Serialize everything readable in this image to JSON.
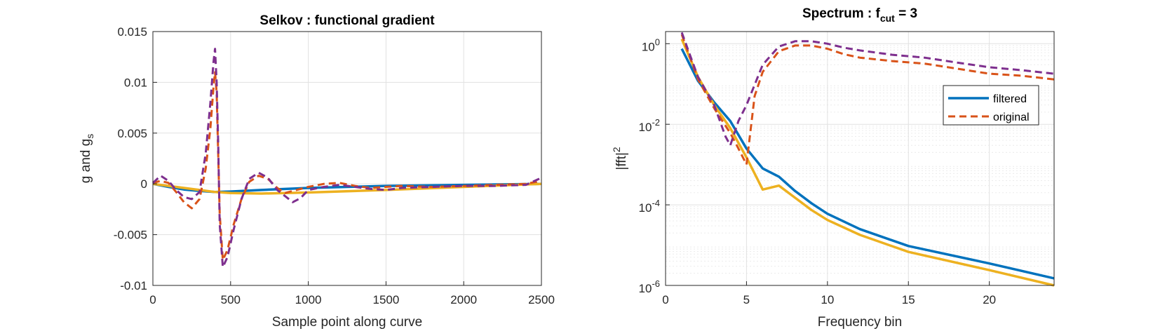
{
  "chart_data": [
    {
      "type": "line",
      "title": "Selkov : functional gradient",
      "xlabel": "Sample point along curve",
      "ylabel": "g and g",
      "ylabel_sub": "s",
      "xlim": [
        0,
        2500
      ],
      "ylim": [
        -0.01,
        0.015
      ],
      "xticks": [
        0,
        500,
        1000,
        1500,
        2000,
        2500
      ],
      "xtick_labels": [
        "0",
        "500",
        "1000",
        "1500",
        "2000",
        "2500"
      ],
      "yticks": [
        -0.01,
        -0.005,
        0,
        0.005,
        0.01,
        0.015
      ],
      "ytick_labels": [
        "-0.01",
        "-0.005",
        "0",
        "0.005",
        "0.01",
        "0.015"
      ],
      "grid": true,
      "series": [
        {
          "color": "#0072BD",
          "dash": "solid",
          "width": 3.5,
          "points": [
            [
              0,
              0
            ],
            [
              100,
              -0.0003
            ],
            [
              200,
              -0.00055
            ],
            [
              300,
              -0.0007
            ],
            [
              400,
              -0.0008
            ],
            [
              500,
              -0.00075
            ],
            [
              700,
              -0.0006
            ],
            [
              1000,
              -0.0004
            ],
            [
              1500,
              -0.0002
            ],
            [
              2000,
              -0.0001
            ],
            [
              2500,
              0
            ]
          ]
        },
        {
          "color": "#EDB120",
          "dash": "solid",
          "width": 3.5,
          "points": [
            [
              0,
              0
            ],
            [
              100,
              -0.0002
            ],
            [
              200,
              -0.0004
            ],
            [
              300,
              -0.0006
            ],
            [
              400,
              -0.0008
            ],
            [
              500,
              -0.0009
            ],
            [
              700,
              -0.00095
            ],
            [
              1000,
              -0.00085
            ],
            [
              1500,
              -0.0006
            ],
            [
              2000,
              -0.0003
            ],
            [
              2500,
              0
            ]
          ]
        },
        {
          "color": "#D95319",
          "dash": "dashed",
          "width": 3,
          "points": [
            [
              0,
              0.0001
            ],
            [
              50,
              0.0003
            ],
            [
              100,
              0.0001
            ],
            [
              150,
              -0.0008
            ],
            [
              200,
              -0.0018
            ],
            [
              250,
              -0.0024
            ],
            [
              300,
              -0.0015
            ],
            [
              340,
              0.0015
            ],
            [
              370,
              0.0055
            ],
            [
              390,
              0.0095
            ],
            [
              400,
              0.011
            ],
            [
              410,
              0.009
            ],
            [
              420,
              0.003
            ],
            [
              430,
              -0.003
            ],
            [
              450,
              -0.0075
            ],
            [
              480,
              -0.0065
            ],
            [
              520,
              -0.004
            ],
            [
              570,
              -0.0015
            ],
            [
              620,
              0.0002
            ],
            [
              680,
              0.0008
            ],
            [
              740,
              0.0005
            ],
            [
              800,
              -0.0004
            ],
            [
              850,
              -0.0009
            ],
            [
              900,
              -0.0007
            ],
            [
              1000,
              -0.0003
            ],
            [
              1100,
              0
            ],
            [
              1200,
              0.0001
            ],
            [
              1300,
              -0.0002
            ],
            [
              1400,
              -0.0004
            ],
            [
              1500,
              -0.0003
            ],
            [
              1600,
              -0.0002
            ],
            [
              1800,
              -0.0003
            ],
            [
              2000,
              -0.0002
            ],
            [
              2200,
              -0.0001
            ],
            [
              2400,
              0
            ],
            [
              2500,
              0.0003
            ]
          ]
        },
        {
          "color": "#7E2F8E",
          "dash": "dashed",
          "width": 3,
          "points": [
            [
              0,
              0.0001
            ],
            [
              50,
              0.0008
            ],
            [
              100,
              0.0003
            ],
            [
              150,
              -0.0006
            ],
            [
              200,
              -0.0013
            ],
            [
              250,
              -0.0015
            ],
            [
              300,
              -0.0008
            ],
            [
              340,
              0.003
            ],
            [
              370,
              0.008
            ],
            [
              390,
              0.012
            ],
            [
              400,
              0.0133
            ],
            [
              410,
              0.01
            ],
            [
              420,
              0.004
            ],
            [
              430,
              -0.004
            ],
            [
              450,
              -0.0082
            ],
            [
              480,
              -0.0072
            ],
            [
              520,
              -0.0045
            ],
            [
              570,
              -0.0015
            ],
            [
              620,
              0.0005
            ],
            [
              680,
              0.0011
            ],
            [
              740,
              0.0006
            ],
            [
              800,
              -0.0006
            ],
            [
              850,
              -0.0012
            ],
            [
              900,
              -0.0018
            ],
            [
              950,
              -0.0014
            ],
            [
              1000,
              -0.0006
            ],
            [
              1100,
              -0.0003
            ],
            [
              1200,
              -0.0001
            ],
            [
              1300,
              -0.0003
            ],
            [
              1400,
              -0.0005
            ],
            [
              1500,
              -0.0006
            ],
            [
              1600,
              -0.0004
            ],
            [
              1800,
              -0.0003
            ],
            [
              2000,
              -0.0002
            ],
            [
              2200,
              -0.0002
            ],
            [
              2400,
              -0.0001
            ],
            [
              2500,
              0.0006
            ]
          ]
        }
      ]
    },
    {
      "type": "line",
      "title": "Spectrum : f",
      "title_sub": "cut",
      "title_suffix": " = 3",
      "xlabel": "Frequency bin",
      "ylabel": "|fft|",
      "ylabel_sup": "2",
      "yscale": "log",
      "xlim": [
        0,
        24
      ],
      "ylim": [
        1e-06,
        2
      ],
      "xticks": [
        0,
        5,
        10,
        15,
        20
      ],
      "xtick_labels": [
        "0",
        "5",
        "10",
        "15",
        "20"
      ],
      "yticks": [
        1e-06,
        0.0001,
        0.01,
        1
      ],
      "ytick_labels": [
        {
          "base": "10",
          "exp": "-6"
        },
        {
          "base": "10",
          "exp": "-4"
        },
        {
          "base": "10",
          "exp": "-2"
        },
        {
          "base": "10",
          "exp": "0"
        }
      ],
      "grid": true,
      "legend": {
        "position": "right",
        "entries": [
          {
            "label": "filtered",
            "color": "#0072BD",
            "dash": "solid"
          },
          {
            "label": "original",
            "color": "#D95319",
            "dash": "dashed"
          }
        ]
      },
      "series": [
        {
          "name": "filtered",
          "color": "#0072BD",
          "dash": "solid",
          "width": 3.5,
          "points": [
            [
              1,
              0.75
            ],
            [
              2,
              0.12
            ],
            [
              3,
              0.035
            ],
            [
              4,
              0.012
            ],
            [
              5,
              0.0025
            ],
            [
              6,
              0.0008
            ],
            [
              7,
              0.0005
            ],
            [
              8,
              0.00022
            ],
            [
              9,
              0.00011
            ],
            [
              10,
              6e-05
            ],
            [
              12,
              2.5e-05
            ],
            [
              15,
              9.5e-06
            ],
            [
              20,
              3.5e-06
            ],
            [
              24,
              1.5e-06
            ]
          ]
        },
        {
          "name": "",
          "color": "#EDB120",
          "dash": "solid",
          "width": 3.5,
          "points": [
            [
              1,
              1.3
            ],
            [
              2,
              0.15
            ],
            [
              3,
              0.03
            ],
            [
              4,
              0.008
            ],
            [
              5,
              0.0015
            ],
            [
              6,
              0.00024
            ],
            [
              7,
              0.0003
            ],
            [
              8,
              0.00015
            ],
            [
              9,
              7.5e-05
            ],
            [
              10,
              4.2e-05
            ],
            [
              12,
              1.8e-05
            ],
            [
              15,
              6.8e-06
            ],
            [
              20,
              2.4e-06
            ],
            [
              24,
              1e-06
            ]
          ]
        },
        {
          "name": "original",
          "color": "#D95319",
          "dash": "dashed",
          "width": 3,
          "points": [
            [
              1,
              1.7
            ],
            [
              2,
              0.13
            ],
            [
              3,
              0.025
            ],
            [
              4,
              0.006
            ],
            [
              4.5,
              0.0025
            ],
            [
              5,
              0.001
            ],
            [
              5.5,
              0.05
            ],
            [
              6,
              0.2
            ],
            [
              7,
              0.65
            ],
            [
              8,
              0.9
            ],
            [
              9,
              0.9
            ],
            [
              10,
              0.75
            ],
            [
              11,
              0.55
            ],
            [
              12,
              0.45
            ],
            [
              14,
              0.37
            ],
            [
              16,
              0.32
            ],
            [
              18,
              0.24
            ],
            [
              20,
              0.18
            ],
            [
              22,
              0.16
            ],
            [
              24,
              0.13
            ]
          ]
        },
        {
          "name": "",
          "color": "#7E2F8E",
          "dash": "dashed",
          "width": 3,
          "points": [
            [
              1,
              1.9
            ],
            [
              2,
              0.15
            ],
            [
              3,
              0.03
            ],
            [
              3.7,
              0.005
            ],
            [
              4,
              0.003
            ],
            [
              4.5,
              0.012
            ],
            [
              5,
              0.03
            ],
            [
              6,
              0.3
            ],
            [
              7,
              0.85
            ],
            [
              8,
              1.15
            ],
            [
              9,
              1.15
            ],
            [
              10,
              1.0
            ],
            [
              11,
              0.8
            ],
            [
              12,
              0.68
            ],
            [
              14,
              0.53
            ],
            [
              16,
              0.45
            ],
            [
              18,
              0.34
            ],
            [
              20,
              0.26
            ],
            [
              22,
              0.22
            ],
            [
              24,
              0.18
            ]
          ]
        }
      ]
    }
  ]
}
